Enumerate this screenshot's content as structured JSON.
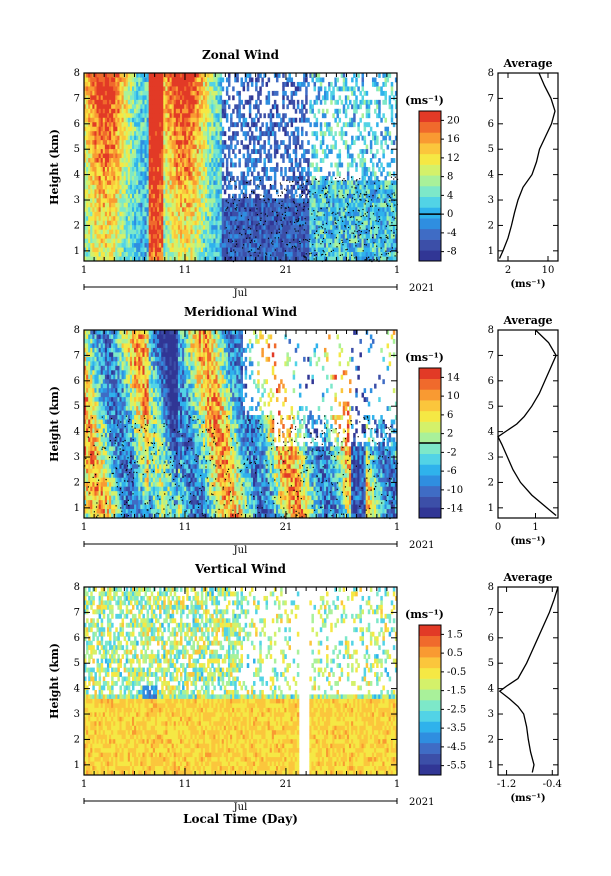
{
  "chart_data": [
    {
      "type": "heatmap",
      "title": "Zonal Wind",
      "ylabel": "Height (km)",
      "ylim": [
        0.6,
        8
      ],
      "yticks": [
        "1",
        "2",
        "3",
        "4",
        "5",
        "6",
        "7",
        "8"
      ],
      "xticks": [
        "1",
        "11",
        "21",
        "1"
      ],
      "xlim_days": [
        1,
        32
      ],
      "month_label": "Jul",
      "year_label": "2021",
      "colorbar": {
        "unit": "(ms⁻¹)",
        "labels": [
          "20",
          "16",
          "12",
          "8",
          "4",
          "0",
          "-4",
          "-8"
        ],
        "range": [
          -10,
          22
        ],
        "zero_line": 0
      },
      "average": {
        "title": "Average",
        "xticks": [
          "2",
          "10"
        ],
        "xlim": [
          0,
          12
        ],
        "xlabel": "(ms⁻¹)",
        "height": [
          0.7,
          1.0,
          1.5,
          2.0,
          2.5,
          3.0,
          3.5,
          4.0,
          4.5,
          5.0,
          5.5,
          6.0,
          6.5,
          7.0,
          7.5,
          8.0
        ],
        "value": [
          0.3,
          1.0,
          2.0,
          2.7,
          3.3,
          4.0,
          5.0,
          6.8,
          7.7,
          8.3,
          9.5,
          10.7,
          11.4,
          10.6,
          9.3,
          8.2
        ]
      }
    },
    {
      "type": "heatmap",
      "title": "Meridional Wind",
      "ylabel": "Height (km)",
      "ylim": [
        0.6,
        8
      ],
      "yticks": [
        "1",
        "2",
        "3",
        "4",
        "5",
        "6",
        "7",
        "8"
      ],
      "xticks": [
        "1",
        "11",
        "21",
        "1"
      ],
      "xlim_days": [
        1,
        32
      ],
      "month_label": "Jul",
      "year_label": "2021",
      "colorbar": {
        "unit": "(ms⁻¹)",
        "labels": [
          "14",
          "10",
          "6",
          "2",
          "-2",
          "-6",
          "-10",
          "-14"
        ],
        "range": [
          -16,
          16
        ],
        "zero_line": 0
      },
      "average": {
        "title": "Average",
        "xticks": [
          "0",
          "1"
        ],
        "xlim": [
          0,
          1.6
        ],
        "xlabel": "(ms⁻¹)",
        "height": [
          0.7,
          1.0,
          1.5,
          2.0,
          2.5,
          3.0,
          3.5,
          3.8,
          4.0,
          4.3,
          4.6,
          5.0,
          5.5,
          6.0,
          6.5,
          7.0,
          7.5,
          8.0
        ],
        "value": [
          1.55,
          1.3,
          0.9,
          0.6,
          0.4,
          0.25,
          0.1,
          0.0,
          0.2,
          0.5,
          0.7,
          0.9,
          1.1,
          1.25,
          1.4,
          1.55,
          1.35,
          1.0
        ]
      }
    },
    {
      "type": "heatmap",
      "title": "Vertical Wind",
      "ylabel": "Height (km)",
      "xlabel": "Local Time (Day)",
      "ylim": [
        0.6,
        8
      ],
      "yticks": [
        "1",
        "2",
        "3",
        "4",
        "5",
        "6",
        "7",
        "8"
      ],
      "xticks": [
        "1",
        "11",
        "21",
        "1"
      ],
      "xlim_days": [
        1,
        32
      ],
      "month_label": "Jul",
      "year_label": "2021",
      "colorbar": {
        "unit": "(ms⁻¹)",
        "labels": [
          "1.5",
          "0.5",
          "-0.5",
          "-1.5",
          "-2.5",
          "-3.5",
          "-4.5",
          "-5.5"
        ],
        "range": [
          -6.0,
          2.0
        ],
        "zero_line": null
      },
      "average": {
        "title": "Average",
        "xticks": [
          "-1.2",
          "-0.4"
        ],
        "xlim": [
          -1.35,
          -0.3
        ],
        "xlabel": "(ms⁻¹)",
        "height": [
          0.7,
          1.0,
          1.5,
          2.0,
          2.5,
          3.0,
          3.3,
          3.6,
          3.9,
          4.1,
          4.4,
          5.0,
          5.5,
          6.0,
          6.5,
          7.0,
          7.5,
          8.0
        ],
        "value": [
          -0.75,
          -0.72,
          -0.78,
          -0.82,
          -0.85,
          -0.9,
          -1.0,
          -1.15,
          -1.32,
          -1.2,
          -1.0,
          -0.85,
          -0.75,
          -0.65,
          -0.55,
          -0.45,
          -0.37,
          -0.3
        ]
      }
    }
  ]
}
